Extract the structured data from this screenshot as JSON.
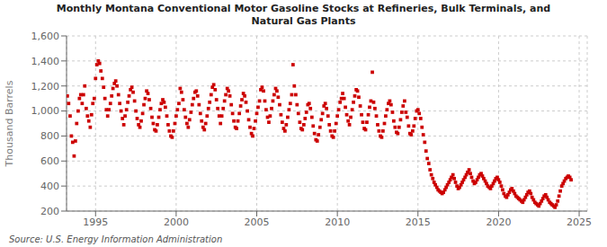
{
  "chart_data": {
    "type": "scatter",
    "title": "Monthly Montana Conventional Motor Gasoline Stocks at Refineries, Bulk Terminals, and\nNatural Gas Plants",
    "y_label": "Thousand Barrels",
    "source": "Source: U.S. Energy Information Administration",
    "color": "#cc0000",
    "marker": "square",
    "grid": true,
    "xlim": [
      1993.2,
      2025.5
    ],
    "xticks": [
      1995,
      2000,
      2005,
      2010,
      2015,
      2020,
      2025
    ],
    "ylim": [
      200,
      1600
    ],
    "yticks": [
      200,
      400,
      600,
      800,
      {
        "value": 1000,
        "label": "1,000"
      },
      {
        "value": 1200,
        "label": "1,200"
      },
      {
        "value": 1400,
        "label": "1,400"
      },
      {
        "value": 1600,
        "label": "1,600"
      }
    ],
    "x": [
      1993.25,
      1993.33,
      1993.42,
      1993.5,
      1993.58,
      1993.67,
      1993.75,
      1993.83,
      1993.92,
      1994.0,
      1994.08,
      1994.17,
      1994.25,
      1994.33,
      1994.42,
      1994.5,
      1994.58,
      1994.67,
      1994.75,
      1994.83,
      1994.92,
      1995.0,
      1995.08,
      1995.17,
      1995.25,
      1995.33,
      1995.42,
      1995.5,
      1995.58,
      1995.67,
      1995.75,
      1995.83,
      1995.92,
      1996.0,
      1996.08,
      1996.17,
      1996.25,
      1996.33,
      1996.42,
      1996.5,
      1996.58,
      1996.67,
      1996.75,
      1996.83,
      1996.92,
      1997.0,
      1997.08,
      1997.17,
      1997.25,
      1997.33,
      1997.42,
      1997.5,
      1997.58,
      1997.67,
      1997.75,
      1997.83,
      1997.92,
      1998.0,
      1998.08,
      1998.17,
      1998.25,
      1998.33,
      1998.42,
      1998.5,
      1998.58,
      1998.67,
      1998.75,
      1998.83,
      1998.92,
      1999.0,
      1999.08,
      1999.17,
      1999.25,
      1999.33,
      1999.42,
      1999.5,
      1999.58,
      1999.67,
      1999.75,
      1999.83,
      1999.92,
      2000.0,
      2000.08,
      2000.17,
      2000.25,
      2000.33,
      2000.42,
      2000.5,
      2000.58,
      2000.67,
      2000.75,
      2000.83,
      2000.92,
      2001.0,
      2001.08,
      2001.17,
      2001.25,
      2001.33,
      2001.42,
      2001.5,
      2001.58,
      2001.67,
      2001.75,
      2001.83,
      2001.92,
      2002.0,
      2002.08,
      2002.17,
      2002.25,
      2002.33,
      2002.42,
      2002.5,
      2002.58,
      2002.67,
      2002.75,
      2002.83,
      2002.92,
      2003.0,
      2003.08,
      2003.17,
      2003.25,
      2003.33,
      2003.42,
      2003.5,
      2003.58,
      2003.67,
      2003.75,
      2003.83,
      2003.92,
      2004.0,
      2004.08,
      2004.17,
      2004.25,
      2004.33,
      2004.42,
      2004.5,
      2004.58,
      2004.67,
      2004.75,
      2004.83,
      2004.92,
      2005.0,
      2005.08,
      2005.17,
      2005.25,
      2005.33,
      2005.42,
      2005.5,
      2005.58,
      2005.67,
      2005.75,
      2005.83,
      2005.92,
      2006.0,
      2006.08,
      2006.17,
      2006.25,
      2006.33,
      2006.42,
      2006.5,
      2006.58,
      2006.67,
      2006.75,
      2006.83,
      2006.92,
      2007.0,
      2007.08,
      2007.17,
      2007.25,
      2007.33,
      2007.42,
      2007.5,
      2007.58,
      2007.67,
      2007.75,
      2007.83,
      2007.92,
      2008.0,
      2008.08,
      2008.17,
      2008.25,
      2008.33,
      2008.42,
      2008.5,
      2008.58,
      2008.67,
      2008.75,
      2008.83,
      2008.92,
      2009.0,
      2009.08,
      2009.17,
      2009.25,
      2009.33,
      2009.42,
      2009.5,
      2009.58,
      2009.67,
      2009.75,
      2009.83,
      2009.92,
      2010.0,
      2010.08,
      2010.17,
      2010.25,
      2010.33,
      2010.42,
      2010.5,
      2010.58,
      2010.67,
      2010.75,
      2010.83,
      2010.92,
      2011.0,
      2011.08,
      2011.17,
      2011.25,
      2011.33,
      2011.42,
      2011.5,
      2011.58,
      2011.67,
      2011.75,
      2011.83,
      2011.92,
      2012.0,
      2012.08,
      2012.17,
      2012.25,
      2012.33,
      2012.42,
      2012.5,
      2012.58,
      2012.67,
      2012.75,
      2012.83,
      2012.92,
      2013.0,
      2013.08,
      2013.17,
      2013.25,
      2013.33,
      2013.42,
      2013.5,
      2013.58,
      2013.67,
      2013.75,
      2013.83,
      2013.92,
      2014.0,
      2014.08,
      2014.17,
      2014.25,
      2014.33,
      2014.42,
      2014.5,
      2014.58,
      2014.67,
      2014.75,
      2014.83,
      2014.92,
      2015.0,
      2015.08,
      2015.17,
      2015.25,
      2015.33,
      2015.42,
      2015.5,
      2015.58,
      2015.67,
      2015.75,
      2015.83,
      2015.92,
      2016.0,
      2016.08,
      2016.17,
      2016.25,
      2016.33,
      2016.42,
      2016.5,
      2016.58,
      2016.67,
      2016.75,
      2016.83,
      2016.92,
      2017.0,
      2017.08,
      2017.17,
      2017.25,
      2017.33,
      2017.42,
      2017.5,
      2017.58,
      2017.67,
      2017.75,
      2017.83,
      2017.92,
      2018.0,
      2018.08,
      2018.17,
      2018.25,
      2018.33,
      2018.42,
      2018.5,
      2018.58,
      2018.67,
      2018.75,
      2018.83,
      2018.92,
      2019.0,
      2019.08,
      2019.17,
      2019.25,
      2019.33,
      2019.42,
      2019.5,
      2019.58,
      2019.67,
      2019.75,
      2019.83,
      2019.92,
      2020.0,
      2020.08,
      2020.17,
      2020.25,
      2020.33,
      2020.42,
      2020.5,
      2020.58,
      2020.67,
      2020.75,
      2020.83,
      2020.92,
      2021.0,
      2021.08,
      2021.17,
      2021.25,
      2021.33,
      2021.42,
      2021.5,
      2021.58,
      2021.67,
      2021.75,
      2021.83,
      2021.92,
      2022.0,
      2022.08,
      2022.17,
      2022.25,
      2022.33,
      2022.42,
      2022.5,
      2022.58,
      2022.67,
      2022.75,
      2022.83,
      2022.92,
      2023.0,
      2023.08,
      2023.17,
      2023.25,
      2023.33,
      2023.42,
      2023.5,
      2023.58,
      2023.67,
      2023.75,
      2023.83,
      2023.92,
      2024.0,
      2024.08,
      2024.17,
      2024.25,
      2024.33,
      2024.42,
      2024.5
    ],
    "values": [
      1120,
      1060,
      960,
      800,
      750,
      640,
      760,
      900,
      1000,
      1100,
      1130,
      1060,
      1130,
      1200,
      1020,
      960,
      920,
      870,
      970,
      1060,
      1100,
      1260,
      1370,
      1400,
      1380,
      1320,
      1260,
      1190,
      1100,
      1010,
      960,
      1010,
      1060,
      1120,
      1180,
      1220,
      1240,
      1200,
      1130,
      1060,
      1000,
      940,
      890,
      960,
      1010,
      1070,
      1120,
      1170,
      1190,
      1150,
      1080,
      1000,
      940,
      890,
      870,
      920,
      980,
      1050,
      1100,
      1160,
      1140,
      1090,
      1020,
      950,
      900,
      850,
      840,
      890,
      950,
      1010,
      1060,
      1090,
      1070,
      1030,
      960,
      890,
      840,
      800,
      790,
      840,
      900,
      960,
      1010,
      1060,
      1180,
      1150,
      1090,
      1010,
      950,
      900,
      870,
      930,
      990,
      1050,
      1100,
      1150,
      1160,
      1120,
      1050,
      980,
      920,
      870,
      850,
      900,
      960,
      1020,
      1070,
      1130,
      1190,
      1210,
      1170,
      1090,
      1020,
      960,
      900,
      960,
      1020,
      1080,
      1130,
      1180,
      1160,
      1120,
      1050,
      980,
      920,
      870,
      860,
      920,
      980,
      1040,
      1090,
      1140,
      1120,
      1070,
      1000,
      930,
      870,
      820,
      800,
      860,
      920,
      980,
      1030,
      1080,
      1170,
      1190,
      1160,
      1080,
      1010,
      950,
      910,
      960,
      1020,
      1080,
      1130,
      1180,
      1160,
      1110,
      1050,
      970,
      910,
      860,
      840,
      890,
      950,
      1010,
      1060,
      1130,
      1370,
      1200,
      1130,
      1050,
      980,
      910,
      860,
      850,
      890,
      940,
      990,
      1050,
      1060,
      1020,
      950,
      880,
      820,
      770,
      760,
      810,
      870,
      930,
      980,
      1040,
      1060,
      1020,
      960,
      890,
      840,
      800,
      790,
      840,
      900,
      960,
      1010,
      1070,
      1100,
      1140,
      1100,
      1030,
      970,
      920,
      890,
      950,
      1010,
      1070,
      1120,
      1170,
      1160,
      1110,
      1040,
      970,
      910,
      860,
      850,
      910,
      970,
      1030,
      1080,
      1310,
      1070,
      1020,
      960,
      890,
      840,
      800,
      790,
      840,
      900,
      960,
      1010,
      1060,
      1080,
      1050,
      990,
      920,
      870,
      830,
      820,
      870,
      930,
      990,
      1040,
      1080,
      990,
      950,
      880,
      820,
      810,
      840,
      880,
      940,
      1000,
      1010,
      980,
      940,
      870,
      810,
      750,
      680,
      620,
      580,
      530,
      490,
      460,
      430,
      410,
      390,
      370,
      360,
      350,
      340,
      350,
      370,
      390,
      410,
      430,
      450,
      470,
      490,
      460,
      430,
      400,
      380,
      390,
      410,
      430,
      450,
      470,
      490,
      510,
      530,
      500,
      470,
      440,
      420,
      430,
      450,
      470,
      490,
      500,
      480,
      460,
      440,
      420,
      400,
      390,
      380,
      400,
      420,
      440,
      460,
      470,
      450,
      430,
      400,
      370,
      340,
      320,
      310,
      330,
      350,
      370,
      380,
      360,
      340,
      320,
      310,
      300,
      290,
      280,
      270,
      290,
      310,
      330,
      350,
      360,
      340,
      310,
      290,
      270,
      260,
      250,
      240,
      260,
      280,
      300,
      320,
      330,
      310,
      290,
      270,
      260,
      250,
      240,
      230,
      250,
      280,
      320,
      360,
      400,
      420,
      440,
      460,
      470,
      480,
      470,
      450
    ]
  }
}
